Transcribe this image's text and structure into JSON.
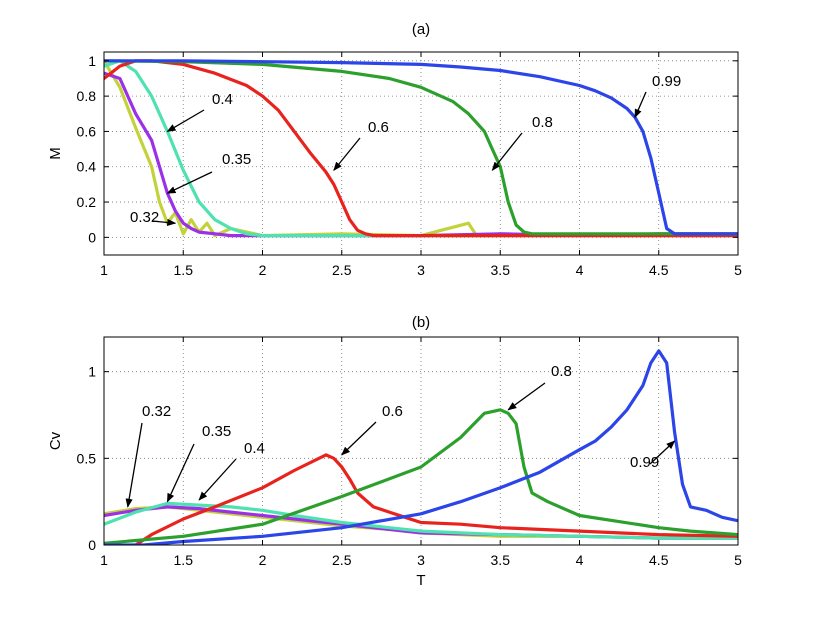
{
  "chart_data": [
    {
      "type": "line",
      "panel_label": "(a)",
      "ylabel": "M",
      "xlabel": "",
      "xlim": [
        1,
        5
      ],
      "ylim": [
        -0.1,
        1.05
      ],
      "xticks": [
        1,
        1.5,
        2,
        2.5,
        3,
        3.5,
        4,
        4.5,
        5
      ],
      "xtick_labels": [
        "1",
        "1.5",
        "2",
        "2.5",
        "3",
        "3.5",
        "4",
        "4.5",
        "5"
      ],
      "yticks": [
        0,
        0.2,
        0.4,
        0.6,
        0.8,
        1
      ],
      "ytick_labels": [
        "0",
        "0.2",
        "0.4",
        "0.6",
        "0.8",
        "1"
      ],
      "grid": true,
      "series": [
        {
          "name": "0.99",
          "color": "#2b45e8",
          "x": [
            1,
            1.5,
            2,
            2.5,
            3,
            3.25,
            3.5,
            3.75,
            4,
            4.1,
            4.2,
            4.3,
            4.35,
            4.4,
            4.45,
            4.5,
            4.55,
            4.6,
            4.8,
            5
          ],
          "y": [
            1,
            1,
            0.995,
            0.99,
            0.98,
            0.965,
            0.945,
            0.91,
            0.86,
            0.83,
            0.79,
            0.73,
            0.68,
            0.6,
            0.45,
            0.25,
            0.05,
            0.02,
            0.02,
            0.02
          ]
        },
        {
          "name": "0.8",
          "color": "#2ca02c",
          "x": [
            1,
            1.5,
            2,
            2.5,
            2.8,
            3,
            3.2,
            3.3,
            3.4,
            3.45,
            3.5,
            3.55,
            3.6,
            3.65,
            3.7,
            3.75,
            4,
            4.5,
            5
          ],
          "y": [
            1,
            0.995,
            0.98,
            0.94,
            0.9,
            0.85,
            0.77,
            0.7,
            0.6,
            0.5,
            0.4,
            0.2,
            0.07,
            0.03,
            0.02,
            0.02,
            0.02,
            0.02,
            0.02
          ]
        },
        {
          "name": "0.6",
          "color": "#e8231e",
          "x": [
            1,
            1.1,
            1.2,
            1.3,
            1.5,
            1.7,
            1.9,
            2,
            2.1,
            2.2,
            2.3,
            2.4,
            2.45,
            2.5,
            2.55,
            2.6,
            2.65,
            2.7,
            2.8,
            3,
            3.5,
            4,
            4.5,
            5
          ],
          "y": [
            0.9,
            0.97,
            1,
            1,
            0.98,
            0.93,
            0.86,
            0.8,
            0.72,
            0.6,
            0.48,
            0.37,
            0.3,
            0.2,
            0.1,
            0.04,
            0.02,
            0.01,
            0.01,
            0.01,
            0.01,
            0.01,
            0.01,
            0.01
          ]
        },
        {
          "name": "0.4",
          "color": "#4de2b0",
          "x": [
            1,
            1.1,
            1.2,
            1.3,
            1.4,
            1.5,
            1.6,
            1.7,
            1.8,
            1.9,
            2,
            2.5,
            3,
            3.5,
            4,
            4.5,
            5
          ],
          "y": [
            0.97,
            1,
            0.94,
            0.8,
            0.6,
            0.38,
            0.2,
            0.1,
            0.05,
            0.02,
            0.01,
            0.01,
            0.01,
            0.01,
            0.01,
            0.01,
            0.01
          ]
        },
        {
          "name": "0.35",
          "color": "#9b30e8",
          "x": [
            1,
            1.1,
            1.2,
            1.3,
            1.35,
            1.4,
            1.45,
            1.5,
            1.55,
            1.6,
            1.7,
            1.8,
            2,
            2.5,
            3,
            3.5,
            4,
            4.5,
            5
          ],
          "y": [
            0.93,
            0.9,
            0.7,
            0.55,
            0.4,
            0.25,
            0.15,
            0.08,
            0.05,
            0.03,
            0.02,
            0.01,
            0.01,
            0.01,
            0.01,
            0.02,
            0.01,
            0.02,
            0.02
          ]
        },
        {
          "name": "0.32",
          "color": "#c4d23a",
          "x": [
            1,
            1.1,
            1.2,
            1.3,
            1.35,
            1.4,
            1.45,
            1.5,
            1.55,
            1.6,
            1.65,
            1.7,
            1.8,
            2,
            2.5,
            3,
            3.3,
            3.35,
            3.5,
            4,
            4.5,
            5
          ],
          "y": [
            1,
            0.85,
            0.62,
            0.4,
            0.2,
            0.08,
            0.14,
            0.02,
            0.1,
            0.03,
            0.08,
            0.01,
            0.05,
            0.01,
            0.02,
            0.01,
            0.08,
            0.01,
            0.02,
            0.01,
            0.02,
            0.01
          ]
        }
      ],
      "annotations": [
        {
          "text": "0.99",
          "x": 4.35,
          "y": 0.68
        },
        {
          "text": "0.8",
          "x": 3.45,
          "y": 0.38
        },
        {
          "text": "0.6",
          "x": 2.45,
          "y": 0.38
        },
        {
          "text": "0.4",
          "x": 1.4,
          "y": 0.6
        },
        {
          "text": "0.35",
          "x": 1.4,
          "y": 0.25
        },
        {
          "text": "0.32",
          "x": 1.45,
          "y": 0.08
        }
      ]
    },
    {
      "type": "line",
      "panel_label": "(b)",
      "ylabel": "Cv",
      "xlabel": "T",
      "xlim": [
        1,
        5
      ],
      "ylim": [
        0,
        1.2
      ],
      "xticks": [
        1,
        1.5,
        2,
        2.5,
        3,
        3.5,
        4,
        4.5,
        5
      ],
      "xtick_labels": [
        "1",
        "1.5",
        "2",
        "2.5",
        "3",
        "3.5",
        "4",
        "4.5",
        "5"
      ],
      "yticks": [
        0,
        0.5,
        1
      ],
      "ytick_labels": [
        "0",
        "0.5",
        "1"
      ],
      "grid": true,
      "series": [
        {
          "name": "0.99",
          "color": "#2b45e8",
          "x": [
            1,
            1.25,
            1.5,
            2,
            2.5,
            3,
            3.25,
            3.5,
            3.75,
            4,
            4.1,
            4.2,
            4.3,
            4.4,
            4.45,
            4.5,
            4.55,
            4.6,
            4.65,
            4.7,
            4.8,
            4.9,
            5
          ],
          "y": [
            0,
            0,
            0.02,
            0.05,
            0.1,
            0.18,
            0.25,
            0.33,
            0.42,
            0.55,
            0.6,
            0.68,
            0.78,
            0.92,
            1.05,
            1.12,
            1.05,
            0.65,
            0.35,
            0.22,
            0.2,
            0.16,
            0.14
          ]
        },
        {
          "name": "0.8",
          "color": "#2ca02c",
          "x": [
            1,
            1.5,
            2,
            2.5,
            3,
            3.25,
            3.4,
            3.5,
            3.55,
            3.6,
            3.65,
            3.7,
            3.8,
            4,
            4.5,
            4.7,
            5
          ],
          "y": [
            0.01,
            0.05,
            0.12,
            0.28,
            0.45,
            0.62,
            0.76,
            0.78,
            0.76,
            0.7,
            0.45,
            0.3,
            0.25,
            0.17,
            0.1,
            0.08,
            0.06
          ]
        },
        {
          "name": "0.6",
          "color": "#e8231e",
          "x": [
            1.2,
            1.3,
            1.5,
            1.7,
            2,
            2.2,
            2.4,
            2.45,
            2.5,
            2.55,
            2.6,
            2.7,
            2.8,
            2.9,
            3,
            3.25,
            3.5,
            4,
            4.5,
            5
          ],
          "y": [
            0,
            0.06,
            0.15,
            0.22,
            0.33,
            0.43,
            0.52,
            0.5,
            0.45,
            0.38,
            0.3,
            0.22,
            0.19,
            0.16,
            0.13,
            0.12,
            0.1,
            0.08,
            0.06,
            0.05
          ]
        },
        {
          "name": "0.4",
          "color": "#4de2b0",
          "x": [
            1,
            1.2,
            1.4,
            1.6,
            1.8,
            2,
            2.2,
            2.5,
            2.8,
            3,
            3.5,
            4,
            4.5,
            5
          ],
          "y": [
            0.12,
            0.19,
            0.24,
            0.23,
            0.22,
            0.2,
            0.17,
            0.13,
            0.1,
            0.08,
            0.06,
            0.05,
            0.04,
            0.04
          ]
        },
        {
          "name": "0.35",
          "color": "#9b30e8",
          "x": [
            1,
            1.2,
            1.4,
            1.6,
            1.8,
            2,
            2.2,
            2.5,
            2.8,
            3,
            3.5,
            4,
            4.5,
            5
          ],
          "y": [
            0.17,
            0.2,
            0.22,
            0.21,
            0.19,
            0.17,
            0.15,
            0.12,
            0.09,
            0.07,
            0.06,
            0.05,
            0.04,
            0.04
          ]
        },
        {
          "name": "0.32",
          "color": "#c4d23a",
          "x": [
            1,
            1.2,
            1.4,
            1.6,
            1.8,
            2,
            2.2,
            2.5,
            2.8,
            3,
            3.5,
            4,
            4.5,
            5
          ],
          "y": [
            0.18,
            0.21,
            0.22,
            0.2,
            0.18,
            0.16,
            0.14,
            0.11,
            0.09,
            0.07,
            0.05,
            0.05,
            0.04,
            0.04
          ]
        }
      ],
      "annotations": [
        {
          "text": "0.99",
          "x": 4.6,
          "y": 0.6
        },
        {
          "text": "0.8",
          "x": 3.55,
          "y": 0.78
        },
        {
          "text": "0.6",
          "x": 2.5,
          "y": 0.52
        },
        {
          "text": "0.4",
          "x": 1.6,
          "y": 0.26
        },
        {
          "text": "0.35",
          "x": 1.4,
          "y": 0.25
        },
        {
          "text": "0.32",
          "x": 1.15,
          "y": 0.22
        }
      ]
    }
  ]
}
